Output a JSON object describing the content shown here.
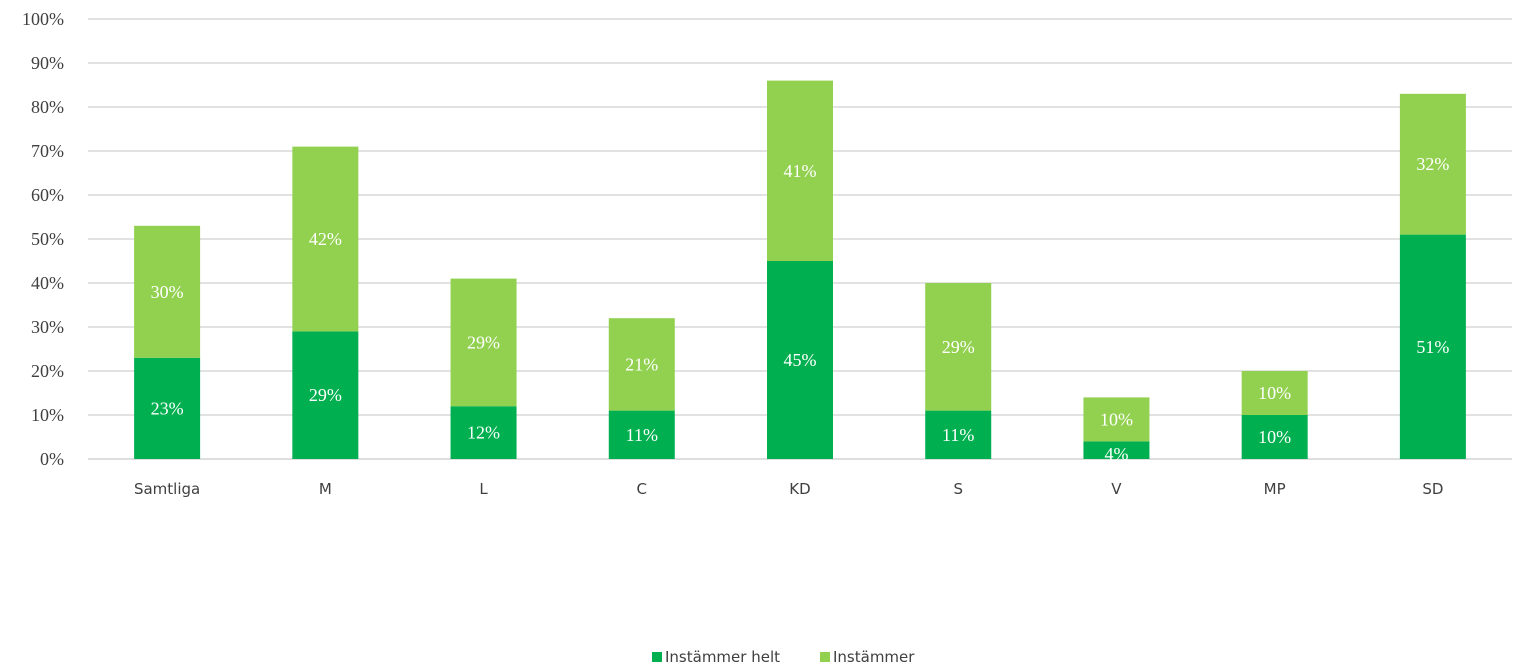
{
  "chart_data": {
    "type": "bar",
    "stacked": true,
    "categories": [
      "Samtliga",
      "M",
      "L",
      "C",
      "KD",
      "S",
      "V",
      "MP",
      "SD"
    ],
    "series": [
      {
        "name": "Instämmer helt",
        "values": [
          23,
          29,
          12,
          11,
          45,
          11,
          4,
          10,
          51
        ],
        "labels": [
          "23%",
          "29%",
          "12%",
          "11%",
          "45%",
          "11%",
          "4%",
          "10%",
          "51%"
        ],
        "color": "#00b050"
      },
      {
        "name": "Instämmer",
        "values": [
          30,
          42,
          29,
          21,
          41,
          29,
          10,
          10,
          32
        ],
        "labels": [
          "30%",
          "42%",
          "29%",
          "21%",
          "41%",
          "29%",
          "10%",
          "10%",
          "32%"
        ],
        "color": "#92d050"
      }
    ],
    "y_ticks": [
      "0%",
      "10%",
      "20%",
      "30%",
      "40%",
      "50%",
      "60%",
      "70%",
      "80%",
      "90%",
      "100%"
    ],
    "ylim": [
      0,
      100
    ],
    "grid": true,
    "legend_position": "bottom-center",
    "gridline_color": "#d9d9d9"
  }
}
